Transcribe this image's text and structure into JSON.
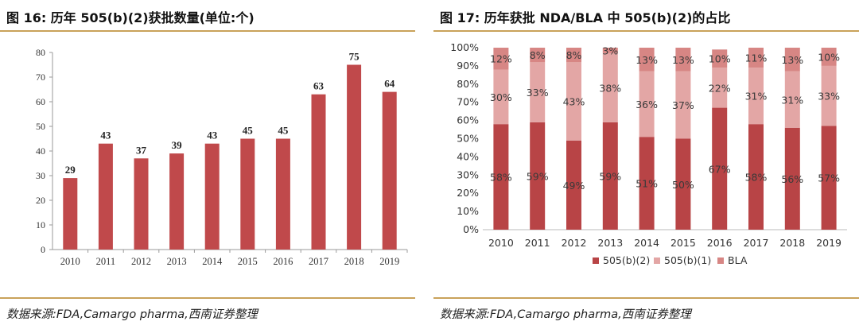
{
  "left": {
    "title": "图 16:  历年 505(b)(2)获批数量(单位:个)",
    "source": "数据来源:FDA,Camargo pharma,西南证券整理"
  },
  "right": {
    "title": "图 17:  历年获批 NDA/BLA 中 505(b)(2)的占比",
    "source": "数据来源:FDA,Camargo pharma,西南证券整理"
  },
  "colors": {
    "bar": "#c0494b",
    "b2": "#b84446",
    "b1": "#e3a6a5",
    "bla": "#d78684",
    "rule": "#c9a25a"
  },
  "chart_data": [
    {
      "type": "bar",
      "title": "历年 505(b)(2)获批数量(单位:个)",
      "categories": [
        "2010",
        "2011",
        "2012",
        "2013",
        "2014",
        "2015",
        "2016",
        "2017",
        "2018",
        "2019"
      ],
      "values": [
        29,
        43,
        37,
        39,
        43,
        45,
        45,
        63,
        75,
        64
      ],
      "ylim": [
        0,
        80
      ],
      "yticks": [
        0,
        10,
        20,
        30,
        40,
        50,
        60,
        70,
        80
      ],
      "xlabel": "",
      "ylabel": ""
    },
    {
      "type": "bar",
      "stacked": true,
      "title": "历年获批 NDA/BLA 中 505(b)(2)的占比",
      "categories": [
        "2010",
        "2011",
        "2012",
        "2013",
        "2014",
        "2015",
        "2016",
        "2017",
        "2018",
        "2019"
      ],
      "series": [
        {
          "name": "505(b)(2)",
          "values": [
            58,
            59,
            49,
            59,
            51,
            50,
            67,
            58,
            56,
            57
          ]
        },
        {
          "name": "505(b)(1)",
          "values": [
            30,
            33,
            43,
            38,
            36,
            37,
            22,
            31,
            31,
            33
          ]
        },
        {
          "name": "BLA",
          "values": [
            12,
            8,
            8,
            3,
            13,
            13,
            10,
            11,
            13,
            10
          ]
        }
      ],
      "ylim": [
        0,
        100
      ],
      "yticks": [
        "0%",
        "10%",
        "20%",
        "30%",
        "40%",
        "50%",
        "60%",
        "70%",
        "80%",
        "90%",
        "100%"
      ],
      "legend": [
        "505(b)(2)",
        "505(b)(1)",
        "BLA"
      ],
      "legend_position": "bottom"
    }
  ]
}
